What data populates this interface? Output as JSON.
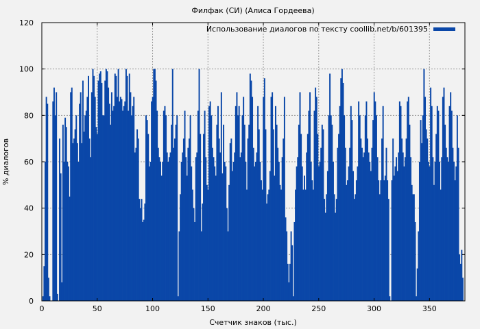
{
  "chart_data": {
    "type": "bar",
    "title": "Филфак (СИ) (Алиса Гордеева)",
    "xlabel": "Счетчик знаков (тыс.)",
    "ylabel": "% диалогов",
    "xlim": [
      0,
      382
    ],
    "ylim": [
      0,
      120
    ],
    "x_ticks": [
      0,
      50,
      100,
      150,
      200,
      250,
      300,
      350
    ],
    "y_ticks": [
      0,
      20,
      40,
      60,
      80,
      100,
      120
    ],
    "grid": true,
    "legend_position": "top-right",
    "series": [
      {
        "name": "Использование диалогов по тексту coollib.net/b/601395",
        "color": "#0a47a8",
        "bin_width": 1,
        "x_start": 1,
        "values": [
          2,
          15,
          60,
          88,
          85,
          10,
          2,
          0,
          0,
          86,
          92,
          80,
          90,
          3,
          0,
          70,
          55,
          8,
          76,
          60,
          79,
          75,
          60,
          58,
          45,
          90,
          92,
          68,
          70,
          74,
          80,
          68,
          60,
          85,
          90,
          68,
          95,
          73,
          80,
          82,
          88,
          97,
          70,
          62,
          90,
          100,
          97,
          88,
          75,
          72,
          95,
          98,
          99,
          94,
          80,
          80,
          95,
          100,
          99,
          92,
          85,
          76,
          90,
          82,
          84,
          98,
          97,
          88,
          100,
          86,
          88,
          87,
          82,
          84,
          86,
          100,
          97,
          82,
          98,
          90,
          80,
          84,
          88,
          64,
          66,
          74,
          70,
          44,
          40,
          44,
          34,
          35,
          42,
          80,
          78,
          72,
          58,
          60,
          86,
          88,
          100,
          100,
          95,
          82,
          66,
          62,
          60,
          54,
          60,
          82,
          84,
          80,
          64,
          60,
          62,
          64,
          76,
          100,
          66,
          70,
          76,
          80,
          2,
          30,
          46,
          60,
          64,
          70,
          82,
          62,
          54,
          66,
          70,
          80,
          58,
          48,
          40,
          34,
          62,
          64,
          82,
          100,
          72,
          30,
          42,
          72,
          82,
          62,
          50,
          48,
          84,
          86,
          80,
          66,
          62,
          58,
          54,
          76,
          84,
          70,
          64,
          90,
          55,
          76,
          60,
          58,
          40,
          30,
          50,
          68,
          70,
          56,
          60,
          64,
          84,
          90,
          80,
          84,
          62,
          64,
          80,
          88,
          76,
          60,
          48,
          70,
          76,
          98,
          95,
          88,
          66,
          58,
          60,
          64,
          84,
          74,
          60,
          52,
          48,
          88,
          96,
          74,
          42,
          46,
          48,
          56,
          88,
          90,
          74,
          54,
          84,
          76,
          66,
          60,
          50,
          48,
          62,
          70,
          88,
          36,
          30,
          16,
          8,
          16,
          30,
          24,
          2,
          34,
          48,
          58,
          62,
          76,
          90,
          72,
          58,
          48,
          54,
          48,
          64,
          72,
          82,
          90,
          60,
          52,
          48,
          82,
          92,
          88,
          72,
          58,
          60,
          66,
          76,
          74,
          44,
          38,
          46,
          56,
          80,
          98,
          80,
          76,
          60,
          46,
          38,
          44,
          66,
          72,
          84,
          96,
          100,
          94,
          80,
          66,
          50,
          52,
          58,
          66,
          84,
          78,
          56,
          44,
          46,
          52,
          58,
          86,
          80,
          70,
          66,
          62,
          64,
          80,
          86,
          70,
          64,
          60,
          56,
          66,
          78,
          90,
          86,
          80,
          62,
          52,
          46,
          52,
          70,
          84,
          52,
          54,
          66,
          52,
          44,
          2,
          0,
          52,
          70,
          54,
          58,
          62,
          56,
          64,
          86,
          84,
          70,
          64,
          58,
          62,
          70,
          86,
          88,
          76,
          62,
          50,
          46,
          46,
          34,
          2,
          14,
          30,
          60,
          78,
          68,
          80,
          100,
          88,
          74,
          70,
          60,
          58,
          92,
          84,
          62,
          50,
          60,
          72,
          84,
          82,
          60,
          48,
          62,
          88,
          92,
          76,
          66,
          62,
          60,
          84,
          90,
          82,
          66,
          60,
          52,
          58,
          80,
          66,
          20,
          16,
          22,
          10
        ]
      }
    ]
  }
}
